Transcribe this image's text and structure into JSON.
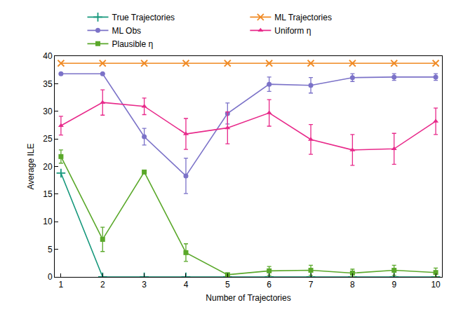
{
  "chart_data": {
    "type": "line",
    "x_label": "Number of Trajectories",
    "y_label": "Average ILE",
    "x": [
      1,
      2,
      3,
      4,
      5,
      6,
      7,
      8,
      9,
      10
    ],
    "xlim": [
      0.85,
      10.15
    ],
    "xticks": [
      1,
      2,
      3,
      4,
      5,
      6,
      7,
      8,
      9,
      10
    ],
    "ylim": [
      0,
      40
    ],
    "yticks": [
      0,
      5,
      10,
      15,
      20,
      25,
      30,
      35,
      40
    ],
    "grid": false,
    "legend": "top",
    "series": [
      {
        "name": "True Trajectories",
        "color": "#17987c",
        "marker": "plus",
        "values": [
          18.8,
          0,
          0,
          0,
          0,
          0,
          0,
          0,
          0,
          0
        ]
      },
      {
        "name": "ML Trajectories",
        "color": "#f08a24",
        "marker": "x",
        "values": [
          38.7,
          38.7,
          38.7,
          38.7,
          38.7,
          38.7,
          38.7,
          38.7,
          38.7,
          38.7
        ]
      },
      {
        "name": "ML Obs",
        "color": "#7b72c8",
        "marker": "circle",
        "values": [
          36.8,
          36.8,
          25.4,
          18.3,
          29.6,
          34.9,
          34.7,
          36.1,
          36.2,
          36.2
        ],
        "errors": [
          0,
          0,
          1.5,
          3.2,
          1.9,
          1.3,
          1.4,
          0.7,
          0.6,
          0.6
        ]
      },
      {
        "name": "Uniform η",
        "color": "#e8298a",
        "marker": "triangle",
        "values": [
          27.4,
          31.6,
          30.9,
          25.9,
          27.0,
          29.7,
          24.9,
          23.0,
          23.2,
          28.2
        ],
        "errors": [
          1.7,
          2.3,
          1.5,
          2.8,
          2.9,
          2.4,
          2.7,
          2.8,
          2.8,
          2.4
        ]
      },
      {
        "name": "Plausible η",
        "color": "#5aa82a",
        "marker": "square",
        "values": [
          21.8,
          6.8,
          19.0,
          4.4,
          0.4,
          1.1,
          1.2,
          0.7,
          1.2,
          0.8
        ],
        "errors": [
          1.2,
          2.2,
          0.2,
          1.6,
          0.2,
          0.8,
          0.9,
          0.7,
          0.9,
          0.8
        ]
      }
    ]
  }
}
